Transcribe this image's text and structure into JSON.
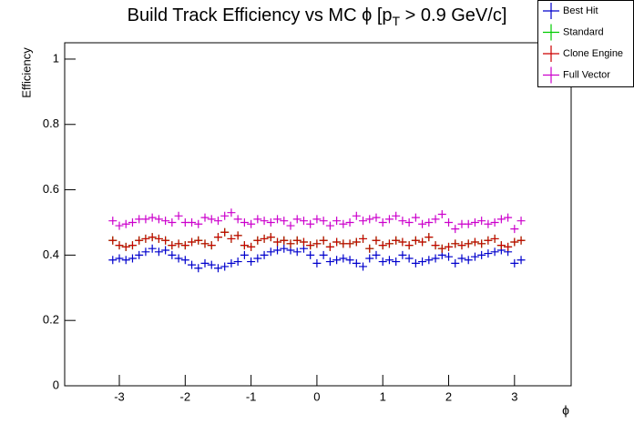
{
  "chart_data": {
    "type": "scatter",
    "title": [
      "Build Track Efficiency vs MC ϕ [p",
      "T",
      " > 0.9 GeV/c]"
    ],
    "x_label": "ϕ",
    "y_label": "Efficiency",
    "x": [
      -3.1,
      -3.0,
      -2.9,
      -2.8,
      -2.7,
      -2.6,
      -2.5,
      -2.4,
      -2.3,
      -2.2,
      -2.1,
      -2.0,
      -1.9,
      -1.8,
      -1.7,
      -1.6,
      -1.5,
      -1.4,
      -1.3,
      -1.2,
      -1.1,
      -1.0,
      -0.9,
      -0.8,
      -0.7,
      -0.6,
      -0.5,
      -0.4,
      -0.3,
      -0.2,
      -0.1,
      0,
      0.1,
      0.2,
      0.3,
      0.4,
      0.5,
      0.6,
      0.7,
      0.8,
      0.9,
      1.0,
      1.1,
      1.2,
      1.3,
      1.4,
      1.5,
      1.6,
      1.7,
      1.8,
      1.9,
      2.0,
      2.1,
      2.2,
      2.3,
      2.4,
      2.5,
      2.6,
      2.7,
      2.8,
      2.9,
      3.0,
      3.1
    ],
    "series": [
      {
        "name": "Best Hit",
        "color": "#0000cc",
        "values": [
          0.385,
          0.39,
          0.385,
          0.39,
          0.4,
          0.41,
          0.42,
          0.41,
          0.415,
          0.4,
          0.39,
          0.385,
          0.37,
          0.36,
          0.375,
          0.37,
          0.36,
          0.365,
          0.375,
          0.38,
          0.4,
          0.38,
          0.39,
          0.4,
          0.41,
          0.415,
          0.42,
          0.415,
          0.41,
          0.42,
          0.4,
          0.375,
          0.4,
          0.38,
          0.385,
          0.39,
          0.385,
          0.375,
          0.365,
          0.39,
          0.4,
          0.38,
          0.385,
          0.38,
          0.4,
          0.39,
          0.375,
          0.38,
          0.385,
          0.39,
          0.4,
          0.395,
          0.375,
          0.39,
          0.385,
          0.395,
          0.4,
          0.405,
          0.41,
          0.415,
          0.41,
          0.375,
          0.385
        ]
      },
      {
        "name": "Standard",
        "color": "#00cc00",
        "values": [
          0.445,
          0.43,
          0.425,
          0.43,
          0.445,
          0.45,
          0.455,
          0.45,
          0.445,
          0.43,
          0.435,
          0.43,
          0.44,
          0.445,
          0.435,
          0.43,
          0.455,
          0.47,
          0.45,
          0.46,
          0.43,
          0.425,
          0.445,
          0.45,
          0.455,
          0.44,
          0.445,
          0.435,
          0.445,
          0.44,
          0.43,
          0.435,
          0.445,
          0.425,
          0.44,
          0.435,
          0.435,
          0.44,
          0.45,
          0.42,
          0.445,
          0.43,
          0.435,
          0.445,
          0.44,
          0.43,
          0.445,
          0.44,
          0.455,
          0.43,
          0.42,
          0.425,
          0.435,
          0.43,
          0.435,
          0.44,
          0.435,
          0.445,
          0.45,
          0.43,
          0.425,
          0.44,
          0.445
        ]
      },
      {
        "name": "Clone Engine",
        "color": "#cc0000",
        "values": [
          0.445,
          0.43,
          0.425,
          0.43,
          0.445,
          0.45,
          0.455,
          0.45,
          0.445,
          0.43,
          0.435,
          0.43,
          0.44,
          0.445,
          0.435,
          0.43,
          0.455,
          0.47,
          0.45,
          0.46,
          0.43,
          0.425,
          0.445,
          0.45,
          0.455,
          0.44,
          0.445,
          0.435,
          0.445,
          0.44,
          0.43,
          0.435,
          0.445,
          0.425,
          0.44,
          0.435,
          0.435,
          0.44,
          0.45,
          0.42,
          0.445,
          0.43,
          0.435,
          0.445,
          0.44,
          0.43,
          0.445,
          0.44,
          0.455,
          0.43,
          0.42,
          0.425,
          0.435,
          0.43,
          0.435,
          0.44,
          0.435,
          0.445,
          0.45,
          0.43,
          0.425,
          0.44,
          0.445
        ]
      },
      {
        "name": "Full Vector",
        "color": "#cc00cc",
        "values": [
          0.505,
          0.49,
          0.495,
          0.5,
          0.51,
          0.51,
          0.515,
          0.51,
          0.505,
          0.5,
          0.52,
          0.5,
          0.5,
          0.495,
          0.515,
          0.51,
          0.505,
          0.52,
          0.53,
          0.51,
          0.5,
          0.495,
          0.51,
          0.505,
          0.5,
          0.51,
          0.505,
          0.49,
          0.51,
          0.505,
          0.495,
          0.51,
          0.505,
          0.49,
          0.505,
          0.495,
          0.5,
          0.52,
          0.505,
          0.51,
          0.515,
          0.5,
          0.51,
          0.52,
          0.505,
          0.5,
          0.515,
          0.495,
          0.5,
          0.51,
          0.525,
          0.5,
          0.48,
          0.495,
          0.495,
          0.5,
          0.505,
          0.495,
          0.5,
          0.51,
          0.515,
          0.48,
          0.505
        ]
      }
    ],
    "xlim": [
      -3.83,
      3.86
    ],
    "xticks": [
      -3,
      -2,
      -1,
      0,
      1,
      2,
      3
    ],
    "ylim": [
      0,
      1.05
    ],
    "yticks": [
      0,
      0.2,
      0.4,
      0.6,
      0.8,
      1
    ],
    "legend": "top-right"
  }
}
